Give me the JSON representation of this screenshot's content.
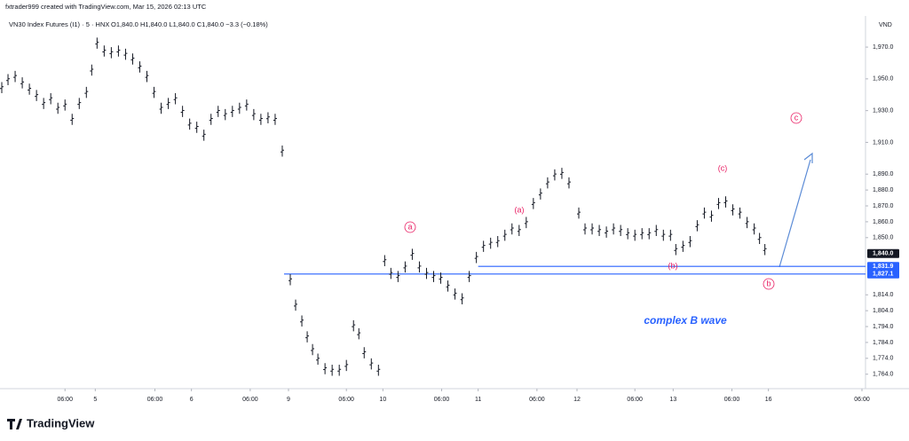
{
  "header": {
    "credit": "fxtrader999 created with TradingView.com, Mar 15, 2026 02:13 UTC",
    "symbol": "VN30 Index Futures (I1) · 5 · HNX",
    "ohlc": "O1,840.0 H1,840.0 L1,840.0 C1,840.0 −3.3 (−0.18%)",
    "currency": "VND"
  },
  "footer": {
    "logo": "TradingView"
  },
  "chart_data": {
    "type": "ohlc",
    "color": "#131722",
    "xlim": [
      3,
      975
    ],
    "xticks": [
      {
        "value": 76,
        "label": "06:00"
      },
      {
        "value": 110,
        "label": "5"
      },
      {
        "value": 177,
        "label": "06:00"
      },
      {
        "value": 218,
        "label": "6"
      },
      {
        "value": 284,
        "label": "06:00"
      },
      {
        "value": 327,
        "label": "9"
      },
      {
        "value": 392,
        "label": "06:00"
      },
      {
        "value": 433,
        "label": "10"
      },
      {
        "value": 499,
        "label": "06:00"
      },
      {
        "value": 540,
        "label": "11"
      },
      {
        "value": 606,
        "label": "06:00"
      },
      {
        "value": 651,
        "label": "12"
      },
      {
        "value": 716,
        "label": "06:00"
      },
      {
        "value": 759,
        "label": "13"
      },
      {
        "value": 825,
        "label": "06:00"
      },
      {
        "value": 866,
        "label": "16"
      },
      {
        "value": 971,
        "label": "06:00"
      }
    ],
    "ylim": [
      1754.9,
      1989.6
    ],
    "yticks": [
      {
        "value": 1970,
        "label": "1,970.0"
      },
      {
        "value": 1950,
        "label": "1,950.0"
      },
      {
        "value": 1930,
        "label": "1,930.0"
      },
      {
        "value": 1910,
        "label": "1,910.0"
      },
      {
        "value": 1890,
        "label": "1,890.0"
      },
      {
        "value": 1880,
        "label": "1,880.0"
      },
      {
        "value": 1870,
        "label": "1,870.0"
      },
      {
        "value": 1860,
        "label": "1,860.0"
      },
      {
        "value": 1850,
        "label": "1,850.0"
      },
      {
        "value": 1814,
        "label": "1,814.0"
      },
      {
        "value": 1804,
        "label": "1,804.0"
      },
      {
        "value": 1794,
        "label": "1,794.0"
      },
      {
        "value": 1784,
        "label": "1,784.0"
      },
      {
        "value": 1774,
        "label": "1,774.0"
      },
      {
        "value": 1764,
        "label": "1,764.0"
      }
    ],
    "x": [
      5,
      12,
      20,
      28,
      36,
      44,
      52,
      60,
      68,
      76,
      84,
      92,
      100,
      106,
      112,
      120,
      128,
      136,
      144,
      152,
      160,
      168,
      176,
      184,
      192,
      200,
      208,
      216,
      224,
      232,
      240,
      248,
      256,
      264,
      272,
      280,
      288,
      296,
      304,
      312,
      320,
      329,
      335,
      342,
      348,
      354,
      360,
      368,
      376,
      384,
      392,
      400,
      406,
      412,
      420,
      428,
      435,
      442,
      450,
      458,
      466,
      474,
      482,
      490,
      498,
      506,
      514,
      522,
      530,
      538,
      546,
      554,
      562,
      570,
      578,
      586,
      594,
      602,
      610,
      618,
      626,
      634,
      642,
      653,
      660,
      668,
      676,
      684,
      692,
      700,
      708,
      716,
      724,
      732,
      740,
      748,
      756,
      762,
      770,
      778,
      786,
      794,
      802,
      810,
      818,
      826,
      834,
      842,
      850,
      856,
      862
    ],
    "high": [
      1948,
      1953,
      1955,
      1951,
      1947,
      1943,
      1938,
      1941,
      1935,
      1937,
      1928,
      1938,
      1945,
      1959,
      1976,
      1971,
      1970,
      1971,
      1969,
      1966,
      1961,
      1955,
      1945,
      1935,
      1938,
      1941,
      1933,
      1925,
      1923,
      1918,
      1928,
      1933,
      1931,
      1933,
      1935,
      1937,
      1931,
      1928,
      1929,
      1928,
      1908,
      1827,
      1811,
      1801,
      1791,
      1783,
      1777,
      1771,
      1770,
      1770,
      1773,
      1798,
      1793,
      1781,
      1774,
      1770,
      1839,
      1831,
      1829,
      1835,
      1843,
      1835,
      1831,
      1829,
      1828,
      1823,
      1818,
      1815,
      1829,
      1841,
      1848,
      1850,
      1851,
      1855,
      1859,
      1858,
      1863,
      1875,
      1881,
      1888,
      1893,
      1894,
      1888,
      1869,
      1859,
      1859,
      1858,
      1857,
      1859,
      1858,
      1856,
      1855,
      1856,
      1856,
      1858,
      1855,
      1855,
      1846,
      1848,
      1851,
      1861,
      1869,
      1867,
      1875,
      1876,
      1871,
      1869,
      1863,
      1859,
      1853,
      1846
    ],
    "low": [
      1941,
      1946,
      1948,
      1944,
      1940,
      1936,
      1931,
      1934,
      1928,
      1930,
      1921,
      1931,
      1938,
      1952,
      1969,
      1964,
      1963,
      1964,
      1962,
      1959,
      1954,
      1948,
      1938,
      1928,
      1931,
      1934,
      1926,
      1918,
      1916,
      1911,
      1921,
      1926,
      1924,
      1926,
      1928,
      1930,
      1924,
      1921,
      1922,
      1921,
      1901,
      1820,
      1804,
      1794,
      1784,
      1776,
      1770,
      1764,
      1763,
      1763,
      1766,
      1791,
      1786,
      1774,
      1767,
      1763,
      1832,
      1824,
      1822,
      1828,
      1836,
      1828,
      1824,
      1822,
      1821,
      1816,
      1811,
      1808,
      1822,
      1834,
      1841,
      1843,
      1844,
      1848,
      1852,
      1851,
      1856,
      1868,
      1874,
      1881,
      1886,
      1887,
      1881,
      1862,
      1852,
      1852,
      1851,
      1850,
      1852,
      1851,
      1849,
      1848,
      1849,
      1849,
      1851,
      1848,
      1848,
      1839,
      1841,
      1844,
      1854,
      1862,
      1860,
      1868,
      1869,
      1864,
      1862,
      1856,
      1852,
      1846,
      1839
    ],
    "levels": [
      {
        "value": 1827.1,
        "x_start": 322,
        "color": "#2962ff"
      },
      {
        "value": 1831.9,
        "x_start": 540,
        "color": "#2962ff"
      }
    ],
    "price_labels": [
      {
        "value": 1840,
        "label": "1,840.0",
        "color": "#131722"
      },
      {
        "value": 1831.9,
        "label": "1,831.9",
        "color": "#2962ff"
      },
      {
        "value": 1827.1,
        "label": "1,827.1",
        "color": "#2962ff"
      }
    ],
    "annotations": [
      "a",
      "(a)",
      "(b)",
      "(c)",
      "c",
      "b",
      "complex B wave"
    ]
  }
}
